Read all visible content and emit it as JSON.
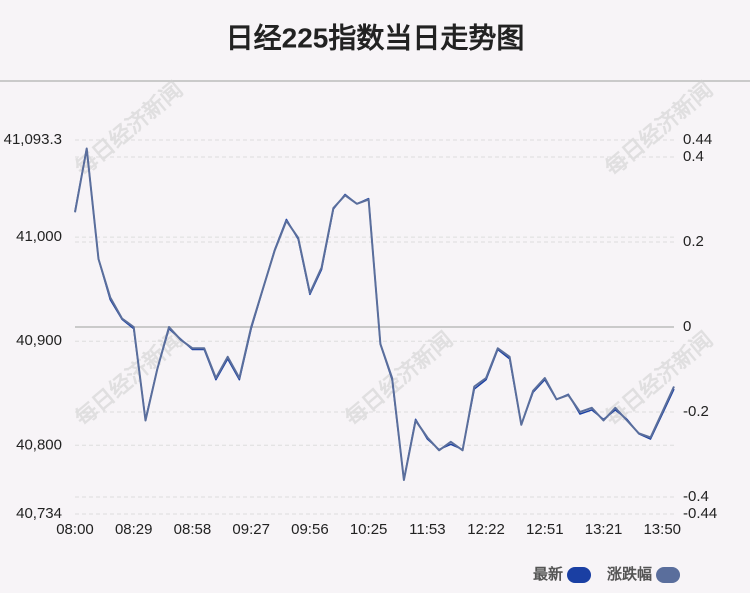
{
  "chart_data": {
    "type": "line",
    "title": "日经225指数当日走势图",
    "watermark": "每日经济新闻",
    "categories": [
      "08:00",
      null,
      null,
      null,
      null,
      "08:29",
      null,
      null,
      null,
      null,
      "08:58",
      null,
      null,
      null,
      null,
      "09:27",
      null,
      null,
      null,
      null,
      "09:56",
      null,
      null,
      null,
      null,
      "10:25",
      null,
      null,
      null,
      null,
      "11:53",
      null,
      null,
      null,
      null,
      "12:22",
      null,
      null,
      null,
      null,
      "12:51",
      null,
      null,
      null,
      null,
      "13:21",
      null,
      null,
      null,
      null,
      "13:50",
      null
    ],
    "series": [
      {
        "name": "最新",
        "color": "#1a3fa3",
        "values": [
          41025,
          41085,
          40979,
          40940,
          40921,
          40912,
          40825,
          40873,
          40912,
          40902,
          40892,
          40892,
          40863,
          40883,
          40863,
          40912,
          40950,
          40988,
          41017,
          40998,
          40945,
          40969,
          41027,
          41041,
          41032,
          41037,
          40897,
          40863,
          40767,
          40825,
          40806,
          40796,
          40801,
          40796,
          40854,
          40863,
          40892,
          40883,
          40820,
          40851,
          40863,
          40844,
          40849,
          40830,
          40834,
          40825,
          40834,
          40825,
          40811,
          40806,
          40830,
          40854
        ]
      },
      {
        "name": "涨跌幅",
        "color": "#5a6e9c",
        "axis": "y2",
        "values": [
          0.27,
          0.42,
          0.16,
          0.07,
          0.02,
          0,
          -0.22,
          -0.1,
          0,
          -0.03,
          -0.05,
          -0.05,
          -0.12,
          -0.07,
          -0.12,
          0,
          0.09,
          0.18,
          0.25,
          0.21,
          0.08,
          0.14,
          0.28,
          0.31,
          0.29,
          0.3,
          -0.04,
          -0.12,
          -0.36,
          -0.22,
          -0.26,
          -0.29,
          -0.27,
          -0.29,
          -0.14,
          -0.12,
          -0.05,
          -0.07,
          -0.23,
          -0.15,
          -0.12,
          -0.17,
          -0.16,
          -0.2,
          -0.19,
          -0.22,
          -0.19,
          -0.22,
          -0.25,
          -0.26,
          -0.2,
          -0.14
        ]
      }
    ],
    "ylim": [
      40734,
      41093.3
    ],
    "yticks": [
      {
        "value": 40734,
        "label": "40,734"
      },
      {
        "value": 40800,
        "label": "40,800"
      },
      {
        "value": 40900,
        "label": "40,900"
      },
      {
        "value": 41000,
        "label": "41,000"
      },
      {
        "value": 41093.3,
        "label": "41,093.3"
      }
    ],
    "y2lim": [
      -0.44,
      0.44
    ],
    "y2ticks": [
      -0.44,
      -0.4,
      -0.2,
      0,
      0.2,
      0.4,
      0.44
    ],
    "grid": true
  }
}
